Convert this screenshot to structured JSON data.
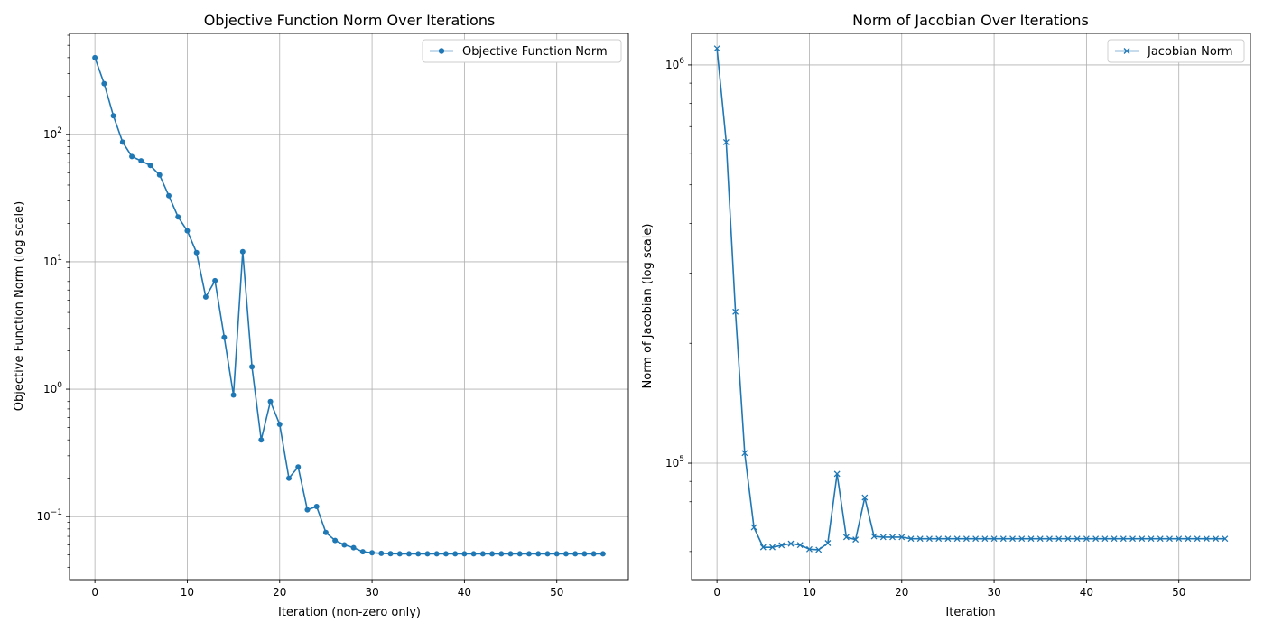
{
  "chart_data": [
    {
      "type": "line",
      "title": "Objective Function Norm Over Iterations",
      "xlabel": "Iteration (non-zero only)",
      "ylabel": "Objective Function Norm (log scale)",
      "yscale": "log",
      "xlim": [
        -2.75,
        57.75
      ],
      "ylim": [
        0.032,
        620
      ],
      "xticks": [
        0,
        10,
        20,
        30,
        40,
        50
      ],
      "yticks": [
        {
          "value": 0.1,
          "base": "10",
          "exp": "−1"
        },
        {
          "value": 1,
          "base": "10",
          "exp": "0"
        },
        {
          "value": 10,
          "base": "10",
          "exp": "1"
        },
        {
          "value": 100,
          "base": "10",
          "exp": "2"
        }
      ],
      "grid": true,
      "legend": "top-right",
      "color": "#1f77b4",
      "marker": "circle",
      "series": [
        {
          "name": "Objective Function Norm",
          "x": [
            0,
            1,
            2,
            3,
            4,
            5,
            6,
            7,
            8,
            9,
            10,
            11,
            12,
            13,
            14,
            15,
            16,
            17,
            18,
            19,
            20,
            21,
            22,
            23,
            24,
            25,
            26,
            27,
            28,
            29,
            30,
            31,
            32,
            33,
            34,
            35,
            36,
            37,
            38,
            39,
            40,
            41,
            42,
            43,
            44,
            45,
            46,
            47,
            48,
            49,
            50,
            51,
            52,
            53,
            54,
            55
          ],
          "y": [
            400,
            250,
            140,
            87,
            67,
            62,
            57,
            48,
            33,
            22.5,
            17.5,
            11.8,
            5.3,
            7.1,
            2.55,
            0.9,
            12.0,
            1.5,
            0.4,
            0.8,
            0.53,
            0.2,
            0.245,
            0.113,
            0.12,
            0.075,
            0.065,
            0.06,
            0.057,
            0.053,
            0.052,
            0.0515,
            0.0512,
            0.051,
            0.051,
            0.051,
            0.051,
            0.051,
            0.051,
            0.051,
            0.051,
            0.051,
            0.051,
            0.051,
            0.051,
            0.051,
            0.051,
            0.051,
            0.051,
            0.051,
            0.051,
            0.051,
            0.051,
            0.051,
            0.051,
            0.051
          ]
        }
      ]
    },
    {
      "type": "line",
      "title": "Norm of Jacobian Over Iterations",
      "xlabel": "Iteration",
      "ylabel": "Norm of Jacobian (log scale)",
      "yscale": "log",
      "xlim": [
        -2.75,
        57.75
      ],
      "ylim": [
        51000,
        1200000
      ],
      "xticks": [
        0,
        10,
        20,
        30,
        40,
        50
      ],
      "yticks": [
        {
          "value": 100000,
          "base": "10",
          "exp": "5"
        },
        {
          "value": 1000000,
          "base": "10",
          "exp": "6"
        }
      ],
      "grid": true,
      "legend": "top-right",
      "color": "#1f77b4",
      "marker": "x",
      "series": [
        {
          "name": "Jacobian Norm",
          "x": [
            0,
            1,
            2,
            3,
            4,
            5,
            6,
            7,
            8,
            9,
            10,
            11,
            12,
            13,
            14,
            15,
            16,
            17,
            18,
            19,
            20,
            21,
            22,
            23,
            24,
            25,
            26,
            27,
            28,
            29,
            30,
            31,
            32,
            33,
            34,
            35,
            36,
            37,
            38,
            39,
            40,
            41,
            42,
            43,
            44,
            45,
            46,
            47,
            48,
            49,
            50,
            51,
            52,
            53,
            54,
            55
          ],
          "y": [
            1100000,
            640000,
            240000,
            106000,
            69000,
            61500,
            61500,
            62200,
            62800,
            62300,
            60800,
            60600,
            63000,
            94000,
            65200,
            64300,
            82000,
            65500,
            65200,
            65200,
            65200,
            64600,
            64600,
            64600,
            64600,
            64600,
            64600,
            64600,
            64600,
            64600,
            64600,
            64600,
            64600,
            64600,
            64600,
            64600,
            64600,
            64600,
            64600,
            64600,
            64600,
            64600,
            64600,
            64600,
            64600,
            64600,
            64600,
            64600,
            64600,
            64600,
            64600,
            64600,
            64600,
            64600,
            64600,
            64600
          ]
        }
      ]
    }
  ]
}
